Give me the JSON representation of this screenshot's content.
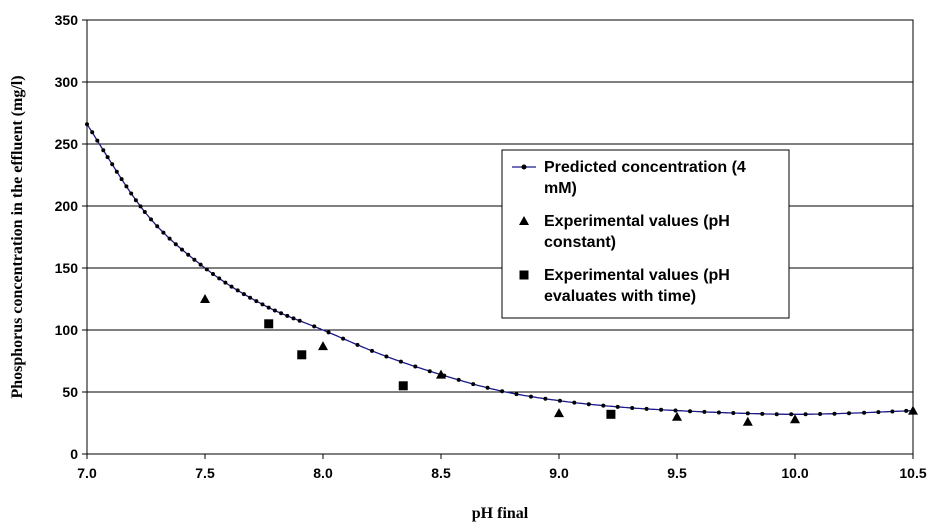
{
  "chart_data": {
    "type": "scatter",
    "title": "",
    "xlabel": "pH final",
    "ylabel": "Phosphorus concentration in the effluent (mg/l)",
    "xlim": [
      7.0,
      10.5
    ],
    "ylim": [
      0,
      350
    ],
    "x_ticks": [
      "7.0",
      "7.5",
      "8.0",
      "8.5",
      "9.0",
      "9.5",
      "10.0",
      "10.5"
    ],
    "y_ticks": [
      "0",
      "50",
      "100",
      "150",
      "200",
      "250",
      "300",
      "350"
    ],
    "grid": "horizontal",
    "legend_position": "right",
    "series": [
      {
        "name": "Predicted concentration (4 mM)",
        "legend_lines": [
          "Predicted concentration (4",
          "mM)"
        ],
        "kind": "line-with-dots",
        "color": "#1a1a8c",
        "x": [
          7.0,
          7.25,
          7.5,
          7.75,
          8.0,
          8.25,
          8.5,
          8.75,
          9.0,
          9.25,
          9.5,
          9.75,
          10.0,
          10.25,
          10.5
        ],
        "y": [
          266,
          194,
          150,
          120,
          100,
          80,
          64,
          51,
          43,
          38,
          35,
          33,
          32,
          33,
          35
        ]
      },
      {
        "name": "Experimental values (pH constant)",
        "legend_lines": [
          "Experimental values  (pH",
          "constant)"
        ],
        "kind": "triangle",
        "color": "#000000",
        "x": [
          7.5,
          8.0,
          8.5,
          9.0,
          9.5,
          9.8,
          10.0,
          10.5
        ],
        "y": [
          125,
          87,
          64,
          33,
          30,
          26,
          28,
          35
        ]
      },
      {
        "name": "Experimental values (pH evaluates with time)",
        "legend_lines": [
          "Experimental values (pH",
          "evaluates with time)"
        ],
        "kind": "square",
        "color": "#000000",
        "x": [
          7.77,
          7.91,
          8.34,
          9.22
        ],
        "y": [
          105,
          80,
          55,
          32
        ]
      }
    ]
  }
}
